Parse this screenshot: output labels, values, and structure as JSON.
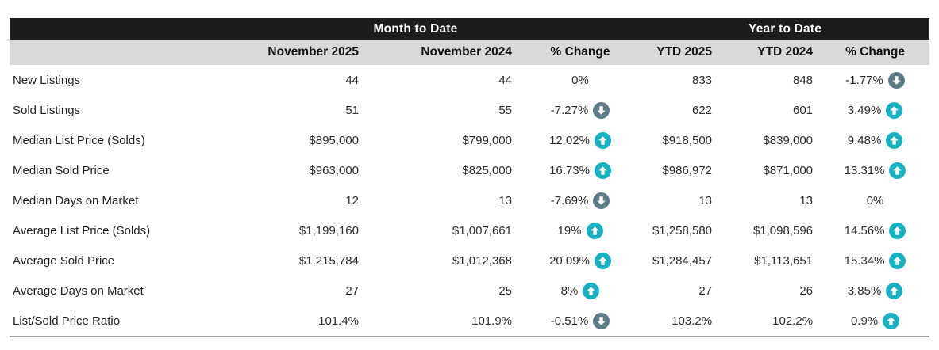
{
  "chart_data": {
    "type": "table",
    "group_headers": [
      "Month to Date",
      "Year to Date"
    ],
    "columns": [
      "",
      "November 2025",
      "November 2024",
      "% Change",
      "YTD 2025",
      "YTD 2024",
      "% Change"
    ],
    "rows": [
      {
        "label": "New Listings",
        "mtd_cur": "44",
        "mtd_prev": "44",
        "mtd_chg": "0%",
        "mtd_dir": "none",
        "ytd_cur": "833",
        "ytd_prev": "848",
        "ytd_chg": "-1.77%",
        "ytd_dir": "down"
      },
      {
        "label": "Sold Listings",
        "mtd_cur": "51",
        "mtd_prev": "55",
        "mtd_chg": "-7.27%",
        "mtd_dir": "down",
        "ytd_cur": "622",
        "ytd_prev": "601",
        "ytd_chg": "3.49%",
        "ytd_dir": "up"
      },
      {
        "label": "Median List Price (Solds)",
        "mtd_cur": "$895,000",
        "mtd_prev": "$799,000",
        "mtd_chg": "12.02%",
        "mtd_dir": "up",
        "ytd_cur": "$918,500",
        "ytd_prev": "$839,000",
        "ytd_chg": "9.48%",
        "ytd_dir": "up"
      },
      {
        "label": "Median Sold Price",
        "mtd_cur": "$963,000",
        "mtd_prev": "$825,000",
        "mtd_chg": "16.73%",
        "mtd_dir": "up",
        "ytd_cur": "$986,972",
        "ytd_prev": "$871,000",
        "ytd_chg": "13.31%",
        "ytd_dir": "up"
      },
      {
        "label": "Median Days on Market",
        "mtd_cur": "12",
        "mtd_prev": "13",
        "mtd_chg": "-7.69%",
        "mtd_dir": "down",
        "ytd_cur": "13",
        "ytd_prev": "13",
        "ytd_chg": "0%",
        "ytd_dir": "none"
      },
      {
        "label": "Average List Price (Solds)",
        "mtd_cur": "$1,199,160",
        "mtd_prev": "$1,007,661",
        "mtd_chg": "19%",
        "mtd_dir": "up",
        "ytd_cur": "$1,258,580",
        "ytd_prev": "$1,098,596",
        "ytd_chg": "14.56%",
        "ytd_dir": "up"
      },
      {
        "label": "Average Sold Price",
        "mtd_cur": "$1,215,784",
        "mtd_prev": "$1,012,368",
        "mtd_chg": "20.09%",
        "mtd_dir": "up",
        "ytd_cur": "$1,284,457",
        "ytd_prev": "$1,113,651",
        "ytd_chg": "15.34%",
        "ytd_dir": "up"
      },
      {
        "label": "Average Days on Market",
        "mtd_cur": "27",
        "mtd_prev": "25",
        "mtd_chg": "8%",
        "mtd_dir": "up",
        "ytd_cur": "27",
        "ytd_prev": "26",
        "ytd_chg": "3.85%",
        "ytd_dir": "up"
      },
      {
        "label": "List/Sold Price Ratio",
        "mtd_cur": "101.4%",
        "mtd_prev": "101.9%",
        "mtd_chg": "-0.51%",
        "mtd_dir": "down",
        "ytd_cur": "103.2%",
        "ytd_prev": "102.2%",
        "ytd_chg": "0.9%",
        "ytd_dir": "up"
      }
    ],
    "colors": {
      "header_bar": "#1d1d1d",
      "subheader_bg": "#d9d9d9",
      "up_arrow": "#16b2c3",
      "down_arrow": "#5e7b88"
    }
  }
}
